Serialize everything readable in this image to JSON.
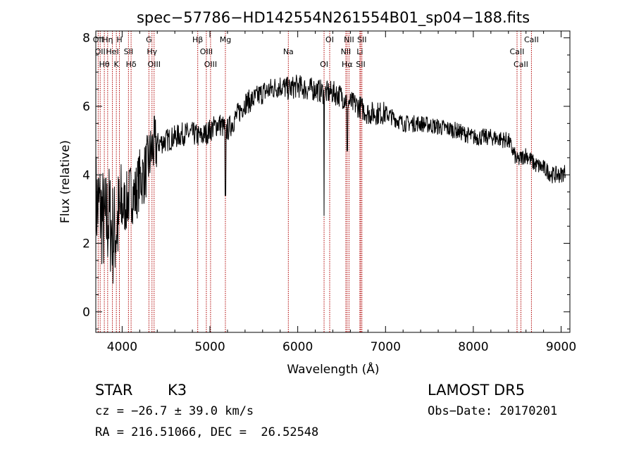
{
  "chart_data": {
    "type": "line",
    "title": "spec−57786−HD142554N261554B01_sp04−188.fits",
    "xlabel": "Wavelength (Å)",
    "ylabel": "Flux (relative)",
    "xlim": [
      3700,
      9100
    ],
    "ylim": [
      -0.6,
      8.2
    ],
    "x_ticks": [
      4000,
      5000,
      6000,
      7000,
      8000,
      9000
    ],
    "y_ticks": [
      0,
      2,
      4,
      6,
      8
    ],
    "grid": false,
    "series": [
      {
        "values_x": [
          3700,
          3750,
          3800,
          3850,
          3900,
          3950,
          4000,
          4050,
          4100,
          4150,
          4200,
          4250,
          4300,
          4350,
          4400,
          4500,
          4600,
          4700,
          4800,
          4900,
          5000,
          5100,
          5200,
          5300,
          5400,
          5500,
          5600,
          5700,
          5800,
          5900,
          6000,
          6100,
          6200,
          6300,
          6400,
          6500,
          6600,
          6700,
          6800,
          6900,
          7000,
          7200,
          7400,
          7600,
          7800,
          8000,
          8200,
          8400,
          8500,
          8600,
          8700,
          8800,
          8900,
          9000,
          9050
        ],
        "values_y": [
          3.2,
          3.0,
          2.5,
          2.8,
          2.2,
          2.6,
          3.0,
          3.2,
          3.5,
          3.4,
          3.9,
          4.0,
          4.4,
          4.8,
          4.9,
          5.0,
          5.1,
          5.2,
          5.2,
          5.1,
          5.3,
          5.5,
          5.3,
          5.7,
          6.1,
          6.2,
          6.4,
          6.5,
          6.6,
          6.5,
          6.6,
          6.5,
          6.5,
          6.4,
          6.4,
          6.3,
          6.1,
          6.0,
          5.8,
          5.8,
          5.8,
          5.5,
          5.5,
          5.4,
          5.3,
          5.1,
          5.1,
          5.0,
          4.4,
          4.6,
          4.3,
          4.2,
          4.0,
          4.0,
          4.1
        ]
      }
    ],
    "lines": [
      {
        "x": 3727,
        "labels": [
          "OII"
        ]
      },
      {
        "x": 3750,
        "labels": [
          "OII"
        ]
      },
      {
        "x": 3797,
        "labels": [
          "Hθ"
        ]
      },
      {
        "x": 3835,
        "labels": [
          "Hη"
        ]
      },
      {
        "x": 3889,
        "labels": [
          "HeI"
        ]
      },
      {
        "x": 3934,
        "labels": [
          "K"
        ]
      },
      {
        "x": 3969,
        "labels": [
          "H"
        ]
      },
      {
        "x": 4072,
        "labels": [
          "SII"
        ]
      },
      {
        "x": 4102,
        "labels": [
          "Hδ"
        ]
      },
      {
        "x": 4305,
        "labels": [
          "G"
        ]
      },
      {
        "x": 4340,
        "labels": [
          "Hγ"
        ]
      },
      {
        "x": 4364,
        "labels": [
          "OIII"
        ]
      },
      {
        "x": 4861,
        "labels": [
          "Hβ"
        ]
      },
      {
        "x": 4959,
        "labels": [
          "OIII"
        ]
      },
      {
        "x": 5007,
        "labels": [
          "OIII"
        ]
      },
      {
        "x": 5176,
        "labels": [
          "Mg"
        ]
      },
      {
        "x": 5893,
        "labels": [
          "Na"
        ]
      },
      {
        "x": 6300,
        "labels": [
          "OI"
        ]
      },
      {
        "x": 6364,
        "labels": [
          "OI"
        ]
      },
      {
        "x": 6548,
        "labels": [
          "NII"
        ]
      },
      {
        "x": 6563,
        "labels": [
          "Hα"
        ]
      },
      {
        "x": 6584,
        "labels": [
          "NII"
        ]
      },
      {
        "x": 6708,
        "labels": [
          "Li"
        ]
      },
      {
        "x": 6717,
        "labels": [
          "SII"
        ]
      },
      {
        "x": 6731,
        "labels": [
          "SII"
        ]
      },
      {
        "x": 8498,
        "labels": [
          "CaII"
        ]
      },
      {
        "x": 8542,
        "labels": [
          "CaII"
        ]
      },
      {
        "x": 8662,
        "labels": [
          "CaII"
        ]
      }
    ]
  },
  "info": {
    "object_class": "STAR",
    "subclass": "K3",
    "cz": "cz = −26.7 ± 39.0 km/s",
    "radec": "RA = 216.51066, DEC =  26.52548",
    "survey": "LAMOST DR5",
    "obs_date": "Obs−Date: 20170201"
  }
}
